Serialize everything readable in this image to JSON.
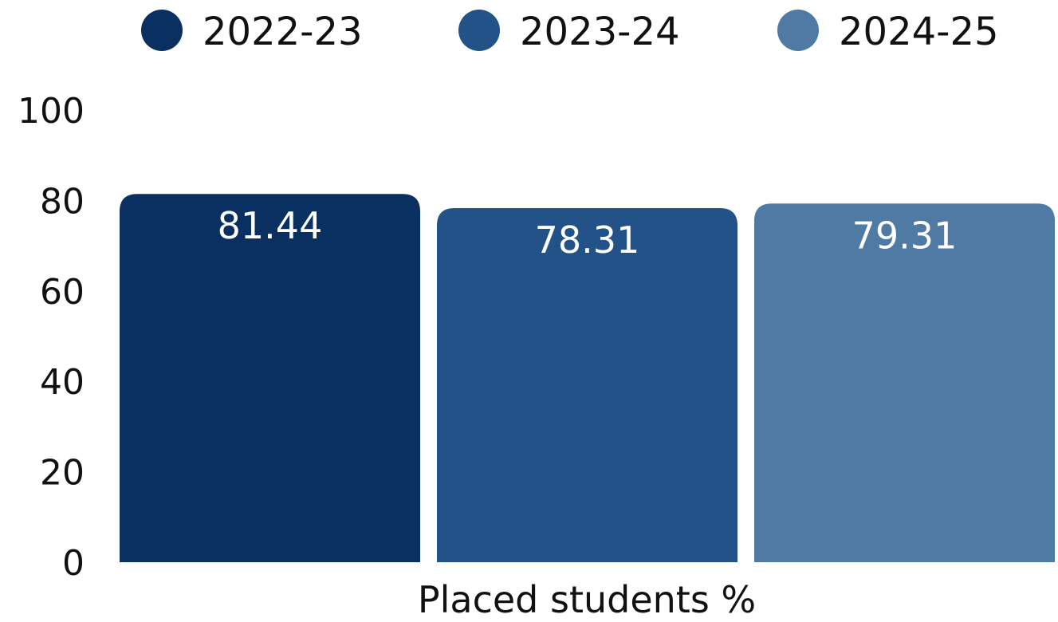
{
  "chart_data": {
    "type": "bar",
    "categories": [
      "Placed students %"
    ],
    "series": [
      {
        "name": "2022-23",
        "values": [
          81.44
        ],
        "color": "#0a2f61"
      },
      {
        "name": "2023-24",
        "values": [
          78.31
        ],
        "color": "#225287"
      },
      {
        "name": "2024-25",
        "values": [
          79.31
        ],
        "color": "#4f7aa4"
      }
    ],
    "data_labels": [
      "81.44",
      "78.31",
      "79.31"
    ],
    "y_ticks": [
      "0",
      "20",
      "40",
      "60",
      "80",
      "100"
    ],
    "ylim": [
      0,
      100
    ],
    "xlabel": "Placed students %",
    "ylabel": "",
    "title": "",
    "grid": false,
    "legend_position": "top"
  }
}
